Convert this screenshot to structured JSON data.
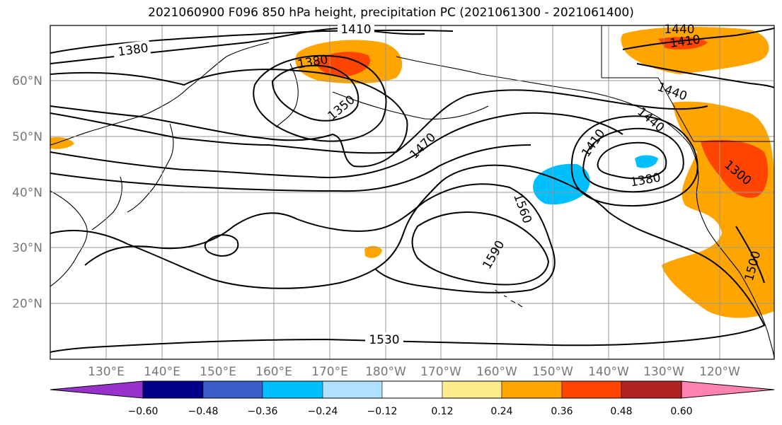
{
  "title": "2021060900 F096 850 hPa height, precipitation PC (2021061300 - 2021061400)",
  "lat_labels": [
    "60°N",
    "50°N",
    "40°N",
    "30°N",
    "20°N"
  ],
  "lon_labels": [
    "130°E",
    "140°E",
    "150°E",
    "160°E",
    "170°E",
    "180°W",
    "170°W",
    "160°W",
    "150°W",
    "140°W",
    "130°W",
    "120°W"
  ],
  "contour_labels": [
    "1410",
    "1380",
    "1380",
    "1350",
    "1470",
    "1560",
    "1590",
    "1530",
    "1410",
    "1380",
    "1440",
    "1410",
    "1440",
    "1440",
    "1300",
    "1500"
  ],
  "colorbar": {
    "colors": [
      "#9932cc",
      "#00008b",
      "#3a5fcd",
      "#00bfff",
      "#b0e2ff",
      "#ffffff",
      "#ffec8b",
      "#ffa500",
      "#ff4500",
      "#b22222",
      "#ff83b0"
    ],
    "tick_labels": [
      "−0.60",
      "−0.48",
      "−0.36",
      "−0.24",
      "−0.12",
      "0.12",
      "0.24",
      "0.36",
      "0.48",
      "0.60"
    ]
  },
  "colors": {
    "positive_mid": "#ffa500",
    "positive_high": "#ff4500",
    "negative": "#00bfff",
    "contour": "#000000",
    "grid": "#999999"
  }
}
